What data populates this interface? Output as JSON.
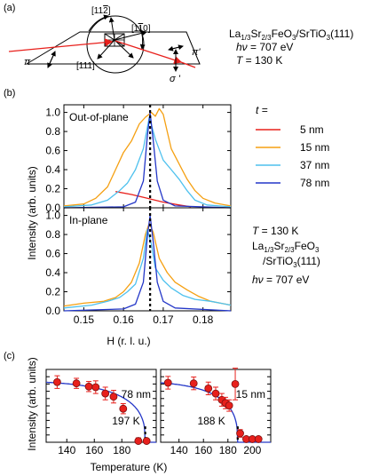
{
  "panel_a": {
    "label": "(a)",
    "dir_112": "[11",
    "dir_112_bar": "2",
    "dir_112_close": "]",
    "dir_1bar10_open": "[1",
    "dir_1bar10_bar": "1",
    "dir_1bar10_close": "0]",
    "dir_111": "[111]",
    "pi_in": "π",
    "pi_out": "π'",
    "sigma_out": "σ '",
    "sample": "La",
    "sample_sub1": "1/3",
    "sample_sr": "Sr",
    "sample_sub2": "2/3",
    "sample_rest": "FeO",
    "sample_sub3": "3",
    "sample_sub": "/SrTiO",
    "sample_sub4": "3",
    "sample_end": "(111)",
    "energy_sym": "hν",
    "energy_val": " = 707 eV",
    "temp_sym": "T",
    "temp_val": " = 130 K"
  },
  "panel_b_label": "(b)",
  "panel_c_label": "(c)",
  "legend": {
    "title": "t =",
    "entries": [
      {
        "label": "5 nm",
        "color": "#e8201c"
      },
      {
        "label": "15 nm",
        "color": "#f5a012"
      },
      {
        "label": "37 nm",
        "color": "#4ec1ee"
      },
      {
        "label": "78 nm",
        "color": "#2437c8"
      }
    ]
  },
  "info_b": {
    "temp_sym": "T",
    "temp_val": " = 130 K",
    "sample_line1": "La",
    "sub1": "1/3",
    "sr": "Sr",
    "sub2": "2/3",
    "feo": "FeO",
    "sub3": "3",
    "sample_line2": "/SrTiO",
    "sub4": "3",
    "sample_line2_end": "(111)",
    "energy_sym": "hν",
    "energy_val": " = 707 eV"
  },
  "chart_data": [
    {
      "type": "line",
      "panel": "b-top",
      "annotation": "Out-of-plane",
      "ylabel": "Intensity (arb. units)",
      "xlim": [
        0.145,
        0.187
      ],
      "ylim": [
        0.0,
        1.08
      ],
      "yticks": [
        "0.0",
        "0.2",
        "0.4",
        "0.6",
        "0.8",
        "1.0"
      ],
      "peak_marker_x": 0.1667,
      "series": [
        {
          "name": "5 nm",
          "color": "#e8201c",
          "x": [
            0.158,
            0.162,
            0.166,
            0.17,
            0.174,
            0.177
          ],
          "y": [
            0.17,
            0.14,
            0.1,
            0.06,
            0.03,
            0.01
          ]
        },
        {
          "name": "15 nm",
          "color": "#f5a012",
          "x": [
            0.145,
            0.15,
            0.153,
            0.156,
            0.158,
            0.16,
            0.162,
            0.164,
            0.1655,
            0.167,
            0.168,
            0.169,
            0.17,
            0.171,
            0.172,
            0.174,
            0.176,
            0.178,
            0.18,
            0.183,
            0.187
          ],
          "y": [
            0.02,
            0.04,
            0.1,
            0.22,
            0.4,
            0.58,
            0.7,
            0.88,
            0.95,
            1.0,
            0.96,
            1.04,
            0.98,
            0.8,
            0.62,
            0.46,
            0.3,
            0.18,
            0.1,
            0.05,
            0.02
          ]
        },
        {
          "name": "37 nm",
          "color": "#4ec1ee",
          "x": [
            0.145,
            0.152,
            0.156,
            0.159,
            0.161,
            0.163,
            0.165,
            0.1665,
            0.168,
            0.17,
            0.172,
            0.174,
            0.176,
            0.178,
            0.181,
            0.187
          ],
          "y": [
            0.01,
            0.03,
            0.08,
            0.18,
            0.26,
            0.4,
            0.62,
            0.95,
            0.72,
            0.5,
            0.4,
            0.3,
            0.18,
            0.08,
            0.03,
            0.01
          ]
        },
        {
          "name": "78 nm",
          "color": "#2437c8",
          "x": [
            0.145,
            0.16,
            0.163,
            0.165,
            0.166,
            0.1667,
            0.1675,
            0.1685,
            0.17,
            0.173,
            0.187
          ],
          "y": [
            0.0,
            0.01,
            0.06,
            0.28,
            0.75,
            1.0,
            0.7,
            0.28,
            0.08,
            0.02,
            0.0
          ]
        }
      ]
    },
    {
      "type": "line",
      "panel": "b-bottom",
      "annotation": "In-plane",
      "xlabel": "H (r. l. u.)",
      "xlim": [
        0.145,
        0.187
      ],
      "ylim": [
        0.0,
        1.08
      ],
      "xticks": [
        "0.15",
        "0.16",
        "0.17",
        "0.18"
      ],
      "yticks": [
        "0.0",
        "0.2",
        "0.4",
        "0.6",
        "0.8",
        "1.0"
      ],
      "peak_marker_x": 0.1667,
      "series": [
        {
          "name": "15 nm",
          "color": "#f5a012",
          "x": [
            0.145,
            0.15,
            0.155,
            0.158,
            0.16,
            0.162,
            0.164,
            0.1655,
            0.1665,
            0.1675,
            0.169,
            0.171,
            0.173,
            0.176,
            0.179,
            0.182,
            0.187
          ],
          "y": [
            0.05,
            0.08,
            0.1,
            0.14,
            0.2,
            0.3,
            0.5,
            0.8,
            0.92,
            0.82,
            0.55,
            0.4,
            0.3,
            0.22,
            0.15,
            0.1,
            0.06
          ]
        },
        {
          "name": "37 nm",
          "color": "#4ec1ee",
          "x": [
            0.145,
            0.152,
            0.156,
            0.159,
            0.161,
            0.163,
            0.165,
            0.166,
            0.167,
            0.168,
            0.17,
            0.172,
            0.175,
            0.178,
            0.182,
            0.187
          ],
          "y": [
            0.03,
            0.06,
            0.1,
            0.14,
            0.2,
            0.28,
            0.55,
            0.85,
            0.7,
            0.45,
            0.32,
            0.24,
            0.16,
            0.12,
            0.1,
            0.06
          ]
        },
        {
          "name": "78 nm",
          "color": "#2437c8",
          "x": [
            0.145,
            0.16,
            0.163,
            0.165,
            0.166,
            0.1667,
            0.1675,
            0.1685,
            0.17,
            0.173,
            0.187
          ],
          "y": [
            0.0,
            0.02,
            0.07,
            0.3,
            0.78,
            1.0,
            0.72,
            0.3,
            0.1,
            0.03,
            0.0
          ]
        }
      ]
    },
    {
      "type": "scatter",
      "panel": "c-left",
      "annotation": "78 nm",
      "transition_label": "197 K",
      "transition_T": 197,
      "ylabel": "Intensity (arb. units)",
      "xlim": [
        125,
        205
      ],
      "ylim": [
        0,
        1.15
      ],
      "xticks": [
        "140",
        "160",
        "180"
      ],
      "points_x": [
        133,
        147,
        156,
        161,
        168,
        174,
        181,
        192,
        198
      ],
      "points_y": [
        0.95,
        0.93,
        0.88,
        0.87,
        0.77,
        0.72,
        0.53,
        0.02,
        0.02
      ],
      "errors": [
        0.1,
        0.08,
        0.08,
        0.1,
        0.1,
        0.1,
        0.08,
        0.05,
        0.03
      ],
      "fit_color": "#2437c8",
      "point_color": "#e8201c"
    },
    {
      "type": "scatter",
      "panel": "c-right",
      "annotation": "15 nm",
      "transition_label": "188 K",
      "transition_T": 188,
      "xlim": [
        125,
        215
      ],
      "ylim": [
        0,
        1.15
      ],
      "xticks": [
        "140",
        "160",
        "180",
        "200"
      ],
      "points_x": [
        131,
        152,
        164,
        170,
        175,
        178,
        181,
        186,
        190,
        195,
        200,
        205
      ],
      "points_y": [
        0.94,
        0.93,
        0.85,
        0.77,
        0.67,
        0.62,
        0.58,
        0.92,
        0.14,
        0.05,
        0.05,
        0.05
      ],
      "errors": [
        0.1,
        0.1,
        0.1,
        0.1,
        0.1,
        0.09,
        0.09,
        0.25,
        0.06,
        0.03,
        0.03,
        0.03
      ],
      "fit_color": "#2437c8",
      "point_color": "#e8201c"
    }
  ],
  "panel_c_xlabel": "Temperature (K)",
  "panel_c_ylabel": "Intensity (arb. units)"
}
